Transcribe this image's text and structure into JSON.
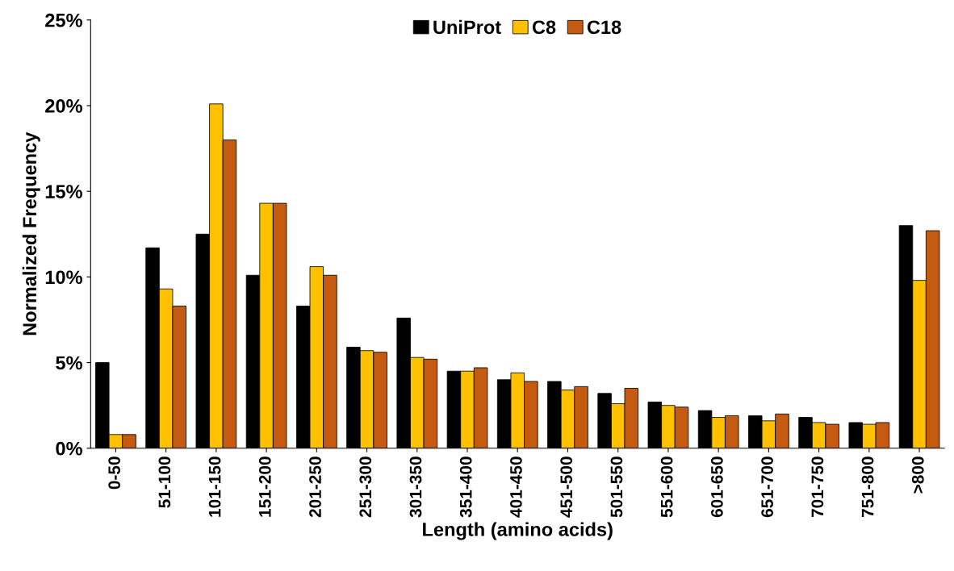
{
  "chart_data": {
    "type": "bar",
    "xlabel": "Length (amino acids)",
    "ylabel": "Normalized Frequency",
    "categories": [
      "0-50",
      "51-100",
      "101-150",
      "151-200",
      "201-250",
      "251-300",
      "301-350",
      "351-400",
      "401-450",
      "451-500",
      "501-550",
      "551-600",
      "601-650",
      "651-700",
      "701-750",
      "751-800",
      ">800"
    ],
    "series": [
      {
        "name": "UniProt",
        "color": "#000000",
        "values": [
          5.0,
          11.7,
          12.5,
          10.1,
          8.3,
          5.9,
          7.6,
          4.5,
          4.0,
          3.9,
          3.2,
          2.7,
          2.2,
          1.9,
          1.8,
          1.5,
          13.0
        ]
      },
      {
        "name": "C8",
        "color": "#ffc000",
        "values": [
          0.8,
          9.3,
          20.1,
          14.3,
          10.6,
          5.7,
          5.3,
          4.5,
          4.4,
          3.4,
          2.6,
          2.5,
          1.8,
          1.6,
          1.5,
          1.4,
          9.8
        ]
      },
      {
        "name": "C18",
        "color": "#c55a11",
        "values": [
          0.8,
          8.3,
          18.0,
          14.3,
          10.1,
          5.6,
          5.2,
          4.7,
          3.9,
          3.6,
          3.5,
          2.4,
          1.9,
          2.0,
          1.4,
          1.5,
          12.7
        ]
      }
    ],
    "ylim": [
      0,
      25
    ],
    "yticks": [
      {
        "value": 0,
        "label": "0%"
      },
      {
        "value": 5,
        "label": "5%"
      },
      {
        "value": 10,
        "label": "10%"
      },
      {
        "value": 15,
        "label": "15%"
      },
      {
        "value": 20,
        "label": "20%"
      },
      {
        "value": 25,
        "label": "25%"
      }
    ],
    "grid": false,
    "legend": "top"
  }
}
